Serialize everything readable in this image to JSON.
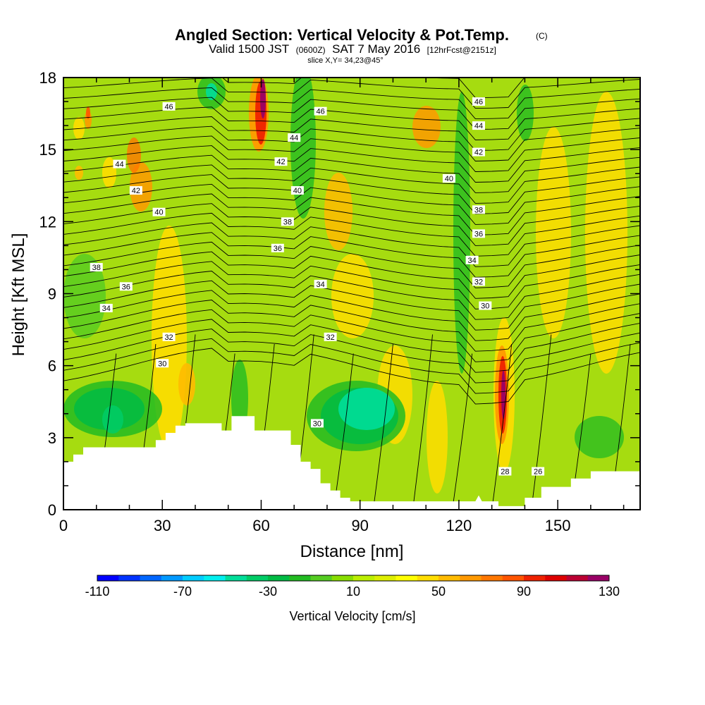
{
  "chart_data": {
    "type": "heatmap",
    "title": "Angled Section: Vertical Velocity & Pot.Temp.",
    "title_mark": "(C)",
    "subtitle": {
      "prefix": "Valid 1500 JST",
      "zulu": "(0600Z)",
      "date": "SAT 7 May 2016",
      "forecast": "[12hrFcst@2151z]"
    },
    "slice": "slice X,Y= 34,23@45°",
    "xlabel": "Distance [nm]",
    "ylabel": "Height [Kft MSL]",
    "xlim": [
      0,
      175
    ],
    "ylim": [
      0,
      18
    ],
    "xticks": [
      "0",
      "30",
      "60",
      "90",
      "120",
      "150"
    ],
    "yticks": [
      "0",
      "3",
      "6",
      "9",
      "12",
      "15",
      "18"
    ],
    "colorbar": {
      "title": "Vertical Velocity [cm/s]",
      "min": -110,
      "max": 130,
      "step": 10,
      "labels": [
        "-110",
        "-70",
        "-30",
        "10",
        "50",
        "90",
        "130"
      ],
      "colors": [
        "#0000ff",
        "#0033ff",
        "#0066ff",
        "#0099ff",
        "#00ccff",
        "#00eeee",
        "#00dd99",
        "#00cc66",
        "#00bb44",
        "#22bb22",
        "#55cc22",
        "#88dd00",
        "#bbee00",
        "#ddee00",
        "#ffff00",
        "#ffdd00",
        "#ffbb00",
        "#ff9900",
        "#ff7700",
        "#ff5500",
        "#ee2200",
        "#dd0000",
        "#bb0033",
        "#990066"
      ]
    },
    "terrain_kft": [
      [
        0,
        2.0
      ],
      [
        3,
        2.0
      ],
      [
        3,
        2.3
      ],
      [
        6,
        2.3
      ],
      [
        6,
        2.6
      ],
      [
        9,
        2.6
      ],
      [
        9,
        2.6
      ],
      [
        25,
        2.6
      ],
      [
        28,
        2.6
      ],
      [
        28,
        2.9
      ],
      [
        31,
        2.9
      ],
      [
        31,
        3.2
      ],
      [
        34,
        3.2
      ],
      [
        34,
        3.5
      ],
      [
        37,
        3.5
      ],
      [
        37,
        3.6
      ],
      [
        48,
        3.6
      ],
      [
        48,
        3.3
      ],
      [
        51,
        3.3
      ],
      [
        51,
        3.9
      ],
      [
        58,
        3.9
      ],
      [
        58,
        3.3
      ],
      [
        69,
        3.3
      ],
      [
        69,
        2.7
      ],
      [
        72,
        2.7
      ],
      [
        72,
        2.0
      ],
      [
        75,
        2.0
      ],
      [
        75,
        1.7
      ],
      [
        78,
        1.7
      ],
      [
        78,
        1.1
      ],
      [
        81,
        1.1
      ],
      [
        81,
        0.8
      ],
      [
        84,
        0.8
      ],
      [
        84,
        0.5
      ],
      [
        87,
        0.5
      ],
      [
        87,
        0.35
      ],
      [
        125,
        0.35
      ],
      [
        126,
        0.6
      ],
      [
        127,
        0.35
      ],
      [
        132,
        0.35
      ],
      [
        132,
        0.15
      ],
      [
        140,
        0.15
      ],
      [
        140,
        0.5
      ],
      [
        145,
        0.5
      ],
      [
        145,
        0.95
      ],
      [
        154,
        0.95
      ],
      [
        154,
        1.3
      ],
      [
        160,
        1.3
      ],
      [
        160,
        1.6
      ],
      [
        175,
        1.6
      ]
    ],
    "theta_labels": [
      {
        "text": "46",
        "x": 32,
        "y": 16.8
      },
      {
        "text": "44",
        "x": 17,
        "y": 14.4
      },
      {
        "text": "42",
        "x": 22,
        "y": 13.3
      },
      {
        "text": "40",
        "x": 29,
        "y": 12.4
      },
      {
        "text": "38",
        "x": 10,
        "y": 10.1
      },
      {
        "text": "36",
        "x": 19,
        "y": 9.3
      },
      {
        "text": "34",
        "x": 13,
        "y": 8.4
      },
      {
        "text": "32",
        "x": 32,
        "y": 7.2
      },
      {
        "text": "30",
        "x": 30,
        "y": 6.1
      },
      {
        "text": "46",
        "x": 78,
        "y": 16.6
      },
      {
        "text": "44",
        "x": 70,
        "y": 15.5
      },
      {
        "text": "42",
        "x": 66,
        "y": 14.5
      },
      {
        "text": "40",
        "x": 71,
        "y": 13.3
      },
      {
        "text": "38",
        "x": 68,
        "y": 12.0
      },
      {
        "text": "36",
        "x": 65,
        "y": 10.9
      },
      {
        "text": "34",
        "x": 78,
        "y": 9.4
      },
      {
        "text": "32",
        "x": 81,
        "y": 7.2
      },
      {
        "text": "30",
        "x": 77,
        "y": 3.6
      },
      {
        "text": "46",
        "x": 126,
        "y": 17.0
      },
      {
        "text": "44",
        "x": 126,
        "y": 16.0
      },
      {
        "text": "42",
        "x": 126,
        "y": 14.9
      },
      {
        "text": "40",
        "x": 117,
        "y": 13.8
      },
      {
        "text": "38",
        "x": 126,
        "y": 12.5
      },
      {
        "text": "36",
        "x": 126,
        "y": 11.5
      },
      {
        "text": "34",
        "x": 124,
        "y": 10.4
      },
      {
        "text": "32",
        "x": 126,
        "y": 9.5
      },
      {
        "text": "30",
        "x": 128,
        "y": 8.5
      },
      {
        "text": "28",
        "x": 134,
        "y": 1.6
      },
      {
        "text": "26",
        "x": 144,
        "y": 1.6
      }
    ]
  }
}
